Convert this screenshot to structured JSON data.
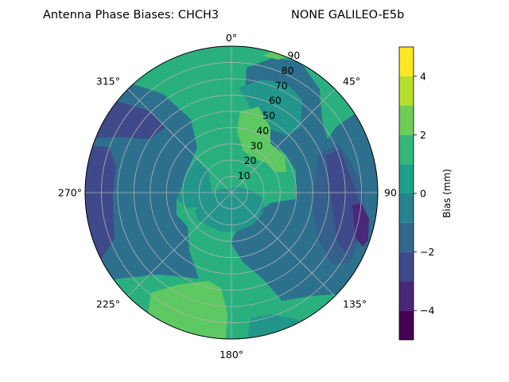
{
  "chart_data": {
    "type": "polar-filled-contour",
    "title_left": "Antenna Phase Biases: CHCH3",
    "title_right": "NONE GALILEO-E5b",
    "colorbar_label": "Bias (mm)",
    "colorbar_ticks": [
      "−4",
      "−2",
      "0",
      "2",
      "4"
    ],
    "colorbar_range": [
      -5,
      5
    ],
    "colorbar_levels": [
      -5,
      -4,
      -3,
      -2,
      -1,
      0,
      1,
      2,
      3,
      4,
      5
    ],
    "colorbar_colors": [
      "#440154",
      "#482878",
      "#3e4989",
      "#31688e",
      "#26828e",
      "#1f9e89",
      "#35b779",
      "#6ece58",
      "#b5de2b",
      "#fde725"
    ],
    "angle_labels": [
      {
        "angle": 0,
        "text": "0°"
      },
      {
        "angle": 45,
        "text": "45°"
      },
      {
        "angle": 90,
        "text": "90"
      },
      {
        "angle": 135,
        "text": "135°"
      },
      {
        "angle": 180,
        "text": "180°"
      },
      {
        "angle": 225,
        "text": "225°"
      },
      {
        "angle": 270,
        "text": "270°"
      },
      {
        "angle": 315,
        "text": "315°"
      }
    ],
    "radial_tick_labels": [
      "10",
      "20",
      "30",
      "40",
      "50",
      "60",
      "70",
      "80",
      "90"
    ],
    "radial_range": [
      0,
      90
    ],
    "grid": true,
    "regions": [
      {
        "name": "background",
        "level": 1.5,
        "color": "#2ab07f"
      },
      {
        "name": "west-band",
        "level": -0.5,
        "color": "#2d708e"
      },
      {
        "name": "west-deep",
        "level": -2.5,
        "color": "#3f4a8a"
      },
      {
        "name": "east-band",
        "level": -0.5,
        "color": "#2d708e"
      },
      {
        "name": "east-inner",
        "level": -1.5,
        "color": "#355f8d"
      },
      {
        "name": "east-deep",
        "level": -2.5,
        "color": "#3f4a8a"
      },
      {
        "name": "center-zero",
        "level": 0.5,
        "color": "#22968b"
      },
      {
        "name": "south-high",
        "level": 2.5,
        "color": "#5ec962"
      },
      {
        "name": "north-east-high",
        "level": 2.5,
        "color": "#5ec962"
      },
      {
        "name": "north-rim",
        "level": 2.5,
        "color": "#5ec962"
      }
    ]
  }
}
